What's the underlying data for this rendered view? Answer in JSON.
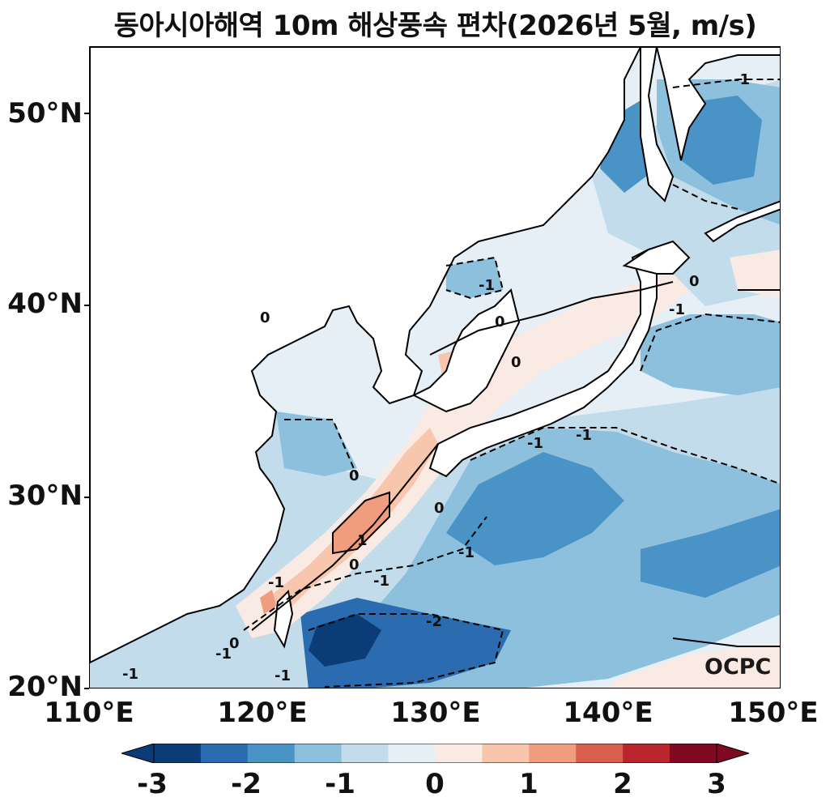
{
  "title": "동아시아해역 10m 해상풍속 편차(2026년 5월, m/s)",
  "lat_labels": [
    "50°N",
    "40°N",
    "30°N",
    "20°N"
  ],
  "lon_labels": [
    "110°E",
    "120°E",
    "130°E",
    "140°E",
    "150°E"
  ],
  "colorbar": {
    "tick_labels": [
      "-3",
      "-2",
      "-1",
      "0",
      "1",
      "2",
      "3"
    ],
    "colors": [
      "#0c3c75",
      "#2b6cb0",
      "#4a93c6",
      "#8dc0dd",
      "#c3dceb",
      "#e6eff5",
      "#faeae4",
      "#f7c6ad",
      "#f09c7e",
      "#d9604f",
      "#b9262e",
      "#7f0823"
    ]
  },
  "contour_labels": [
    "-1",
    "0",
    "-1",
    "0",
    "0",
    "-1",
    "-1",
    "0",
    "-1",
    "1",
    "0",
    "-1",
    "0",
    "-1",
    "-1",
    "-2",
    "-1",
    "-1",
    "-1",
    "0",
    "0"
  ],
  "watermark": "OCPC"
}
